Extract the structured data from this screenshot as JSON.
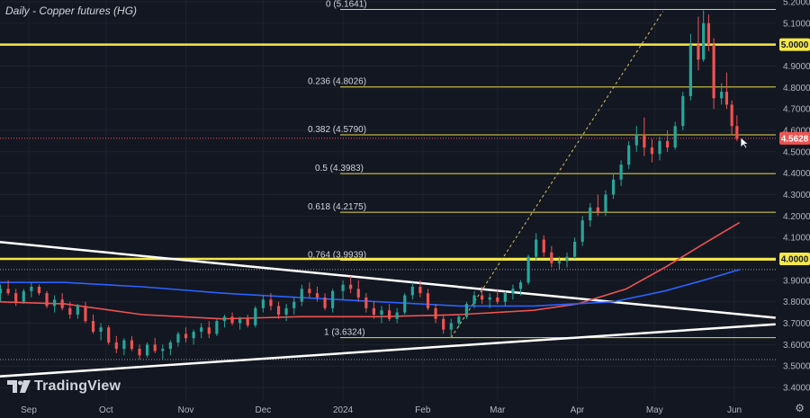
{
  "title": "Daily - Copper futures (HG)",
  "brand": {
    "name": "TradingView"
  },
  "settings_icon": "gear-icon",
  "chart_data": {
    "type": "candlestick",
    "ylim": [
      3.36,
      5.24
    ],
    "y_ticks": [
      5.2,
      5.1,
      5.0,
      4.9,
      4.8,
      4.7,
      4.6,
      4.5,
      4.4,
      4.3,
      4.2,
      4.1,
      4.0,
      3.9,
      3.8,
      3.7,
      3.6,
      3.5,
      3.4
    ],
    "y_tick_labels": [
      "5.2000",
      "5.1000",
      "5.0000",
      "4.9000",
      "4.8000",
      "4.7000",
      "4.6000",
      "4.5000",
      "4.4000",
      "4.3000",
      "4.2000",
      "4.1000",
      "4.0000",
      "3.9000",
      "3.8000",
      "3.7000",
      "3.6000",
      "3.5000",
      "3.4000"
    ],
    "x_labels": [
      {
        "label": "Sep",
        "date": "2023-09-01"
      },
      {
        "label": "Oct",
        "date": "2023-10-01"
      },
      {
        "label": "Nov",
        "date": "2023-11-01"
      },
      {
        "label": "Dec",
        "date": "2023-12-01"
      },
      {
        "label": "2024",
        "date": "2024-01-01"
      },
      {
        "label": "Feb",
        "date": "2024-02-01"
      },
      {
        "label": "Mar",
        "date": "2024-03-01"
      },
      {
        "label": "Apr",
        "date": "2024-04-01"
      },
      {
        "label": "May",
        "date": "2024-05-01"
      },
      {
        "label": "Jun",
        "date": "2024-06-01"
      }
    ],
    "current_price": {
      "value": 4.5628,
      "label": "4.5628"
    },
    "horizontal_levels": [
      {
        "value": 5.0,
        "label": "5.0000"
      },
      {
        "value": 4.0,
        "label": "4.0000"
      }
    ],
    "fibonacci": [
      {
        "label": "0 (5.1641)",
        "value": 5.1641
      },
      {
        "label": "0.236 (4.8026)",
        "value": 4.8026
      },
      {
        "label": "0.382 (4.5790)",
        "value": 4.579
      },
      {
        "label": "0.5 (4.3983)",
        "value": 4.3983
      },
      {
        "label": "0.618 (4.2175)",
        "value": 4.2175
      },
      {
        "label": "0.764 (3.9939)",
        "value": 3.9939
      },
      {
        "label": "1 (3.6324)",
        "value": 3.6324
      }
    ],
    "dotted_levels": [
      3.95,
      3.53
    ],
    "fib_anchor": {
      "start": {
        "date": "2024-02-12",
        "value": 3.6324
      },
      "end": {
        "date": "2024-05-20",
        "value": 5.1641
      }
    },
    "trendlines": [
      {
        "start": {
          "date": "2023-07-25",
          "value": 4.11
        },
        "end": {
          "date": "2024-06-17",
          "value": 3.725
        }
      },
      {
        "start": {
          "date": "2023-07-25",
          "value": 3.43
        },
        "end": {
          "date": "2024-06-17",
          "value": 3.695
        }
      }
    ],
    "moving_averages": [
      {
        "color": "#ef5350",
        "points": [
          {
            "date": "2023-07-25",
            "value": 3.81
          },
          {
            "date": "2023-09-15",
            "value": 3.79
          },
          {
            "date": "2023-10-15",
            "value": 3.74
          },
          {
            "date": "2023-11-15",
            "value": 3.72
          },
          {
            "date": "2023-12-15",
            "value": 3.73
          },
          {
            "date": "2024-01-15",
            "value": 3.73
          },
          {
            "date": "2024-02-15",
            "value": 3.74
          },
          {
            "date": "2024-03-15",
            "value": 3.76
          },
          {
            "date": "2024-04-01",
            "value": 3.79
          },
          {
            "date": "2024-04-20",
            "value": 3.86
          },
          {
            "date": "2024-05-05",
            "value": 3.96
          },
          {
            "date": "2024-05-20",
            "value": 4.07
          },
          {
            "date": "2024-06-03",
            "value": 4.17
          }
        ]
      },
      {
        "color": "#2962ff",
        "points": [
          {
            "date": "2023-07-25",
            "value": 3.89
          },
          {
            "date": "2023-09-15",
            "value": 3.89
          },
          {
            "date": "2023-10-15",
            "value": 3.87
          },
          {
            "date": "2023-11-15",
            "value": 3.84
          },
          {
            "date": "2023-12-15",
            "value": 3.82
          },
          {
            "date": "2024-01-15",
            "value": 3.8
          },
          {
            "date": "2024-02-15",
            "value": 3.78
          },
          {
            "date": "2024-03-15",
            "value": 3.78
          },
          {
            "date": "2024-04-15",
            "value": 3.8
          },
          {
            "date": "2024-05-05",
            "value": 3.85
          },
          {
            "date": "2024-05-20",
            "value": 3.9
          },
          {
            "date": "2024-06-03",
            "value": 3.95
          }
        ]
      }
    ],
    "candles": [
      [
        "2023-08-21",
        3.84,
        3.88,
        3.8,
        3.86
      ],
      [
        "2023-08-24",
        3.86,
        3.9,
        3.83,
        3.84
      ],
      [
        "2023-08-27",
        3.84,
        3.86,
        3.78,
        3.8
      ],
      [
        "2023-08-30",
        3.8,
        3.86,
        3.79,
        3.85
      ],
      [
        "2023-09-02",
        3.85,
        3.89,
        3.82,
        3.87
      ],
      [
        "2023-09-05",
        3.87,
        3.88,
        3.83,
        3.84
      ],
      [
        "2023-09-08",
        3.84,
        3.85,
        3.77,
        3.78
      ],
      [
        "2023-09-11",
        3.78,
        3.83,
        3.75,
        3.81
      ],
      [
        "2023-09-14",
        3.81,
        3.84,
        3.76,
        3.77
      ],
      [
        "2023-09-17",
        3.77,
        3.8,
        3.72,
        3.74
      ],
      [
        "2023-09-20",
        3.74,
        3.79,
        3.72,
        3.78
      ],
      [
        "2023-09-23",
        3.78,
        3.8,
        3.7,
        3.71
      ],
      [
        "2023-09-26",
        3.71,
        3.74,
        3.65,
        3.66
      ],
      [
        "2023-09-29",
        3.66,
        3.7,
        3.62,
        3.68
      ],
      [
        "2023-10-02",
        3.68,
        3.69,
        3.6,
        3.61
      ],
      [
        "2023-10-05",
        3.61,
        3.64,
        3.56,
        3.58
      ],
      [
        "2023-10-08",
        3.58,
        3.63,
        3.55,
        3.62
      ],
      [
        "2023-10-11",
        3.62,
        3.64,
        3.57,
        3.58
      ],
      [
        "2023-10-14",
        3.58,
        3.6,
        3.53,
        3.55
      ],
      [
        "2023-10-17",
        3.55,
        3.61,
        3.54,
        3.6
      ],
      [
        "2023-10-20",
        3.6,
        3.63,
        3.56,
        3.57
      ],
      [
        "2023-10-23",
        3.57,
        3.6,
        3.53,
        3.58
      ],
      [
        "2023-10-26",
        3.58,
        3.62,
        3.55,
        3.61
      ],
      [
        "2023-10-29",
        3.61,
        3.66,
        3.59,
        3.65
      ],
      [
        "2023-11-01",
        3.65,
        3.68,
        3.61,
        3.63
      ],
      [
        "2023-11-04",
        3.63,
        3.67,
        3.6,
        3.66
      ],
      [
        "2023-11-07",
        3.66,
        3.7,
        3.63,
        3.68
      ],
      [
        "2023-11-10",
        3.68,
        3.71,
        3.63,
        3.65
      ],
      [
        "2023-11-13",
        3.65,
        3.72,
        3.64,
        3.71
      ],
      [
        "2023-11-16",
        3.71,
        3.74,
        3.68,
        3.73
      ],
      [
        "2023-11-19",
        3.73,
        3.75,
        3.69,
        3.7
      ],
      [
        "2023-11-22",
        3.7,
        3.73,
        3.67,
        3.72
      ],
      [
        "2023-11-25",
        3.72,
        3.74,
        3.68,
        3.69
      ],
      [
        "2023-11-28",
        3.69,
        3.78,
        3.68,
        3.77
      ],
      [
        "2023-12-01",
        3.77,
        3.83,
        3.75,
        3.81
      ],
      [
        "2023-12-04",
        3.81,
        3.84,
        3.76,
        3.78
      ],
      [
        "2023-12-07",
        3.78,
        3.8,
        3.72,
        3.74
      ],
      [
        "2023-12-10",
        3.74,
        3.79,
        3.71,
        3.77
      ],
      [
        "2023-12-13",
        3.77,
        3.82,
        3.74,
        3.8
      ],
      [
        "2023-12-16",
        3.8,
        3.88,
        3.78,
        3.86
      ],
      [
        "2023-12-19",
        3.86,
        3.89,
        3.82,
        3.84
      ],
      [
        "2023-12-22",
        3.84,
        3.87,
        3.8,
        3.82
      ],
      [
        "2023-12-25",
        3.82,
        3.84,
        3.76,
        3.77
      ],
      [
        "2023-12-28",
        3.77,
        3.86,
        3.75,
        3.85
      ],
      [
        "2024-01-01",
        3.85,
        3.9,
        3.81,
        3.88
      ],
      [
        "2024-01-04",
        3.88,
        3.92,
        3.84,
        3.86
      ],
      [
        "2024-01-07",
        3.86,
        3.9,
        3.8,
        3.82
      ],
      [
        "2024-01-10",
        3.82,
        3.84,
        3.75,
        3.77
      ],
      [
        "2024-01-13",
        3.77,
        3.8,
        3.72,
        3.74
      ],
      [
        "2024-01-16",
        3.74,
        3.78,
        3.7,
        3.76
      ],
      [
        "2024-01-19",
        3.76,
        3.79,
        3.71,
        3.72
      ],
      [
        "2024-01-22",
        3.72,
        3.77,
        3.7,
        3.75
      ],
      [
        "2024-01-25",
        3.75,
        3.84,
        3.74,
        3.83
      ],
      [
        "2024-01-28",
        3.83,
        3.89,
        3.81,
        3.87
      ],
      [
        "2024-01-31",
        3.87,
        3.9,
        3.82,
        3.84
      ],
      [
        "2024-02-03",
        3.84,
        3.86,
        3.76,
        3.77
      ],
      [
        "2024-02-06",
        3.77,
        3.79,
        3.7,
        3.72
      ],
      [
        "2024-02-09",
        3.72,
        3.74,
        3.65,
        3.67
      ],
      [
        "2024-02-12",
        3.67,
        3.72,
        3.63,
        3.7
      ],
      [
        "2024-02-15",
        3.7,
        3.74,
        3.68,
        3.73
      ],
      [
        "2024-02-18",
        3.73,
        3.8,
        3.72,
        3.79
      ],
      [
        "2024-02-21",
        3.79,
        3.85,
        3.77,
        3.83
      ],
      [
        "2024-02-24",
        3.83,
        3.87,
        3.79,
        3.81
      ],
      [
        "2024-02-27",
        3.81,
        3.84,
        3.77,
        3.82
      ],
      [
        "2024-03-01",
        3.82,
        3.86,
        3.79,
        3.8
      ],
      [
        "2024-03-04",
        3.8,
        3.85,
        3.78,
        3.84
      ],
      [
        "2024-03-07",
        3.84,
        3.88,
        3.81,
        3.86
      ],
      [
        "2024-03-10",
        3.86,
        3.9,
        3.83,
        3.89
      ],
      [
        "2024-03-13",
        3.89,
        4.02,
        3.88,
        4.01
      ],
      [
        "2024-03-16",
        4.01,
        4.12,
        3.99,
        4.09
      ],
      [
        "2024-03-19",
        4.09,
        4.11,
        4.01,
        4.03
      ],
      [
        "2024-03-22",
        4.03,
        4.06,
        3.96,
        3.98
      ],
      [
        "2024-03-25",
        3.98,
        4.01,
        3.95,
        3.99
      ],
      [
        "2024-03-28",
        3.99,
        4.03,
        3.96,
        4.01
      ],
      [
        "2024-03-31",
        4.01,
        4.1,
        4.0,
        4.08
      ],
      [
        "2024-04-03",
        4.08,
        4.2,
        4.06,
        4.18
      ],
      [
        "2024-04-06",
        4.18,
        4.26,
        4.15,
        4.24
      ],
      [
        "2024-04-09",
        4.24,
        4.3,
        4.2,
        4.22
      ],
      [
        "2024-04-12",
        4.22,
        4.32,
        4.2,
        4.3
      ],
      [
        "2024-04-15",
        4.3,
        4.4,
        4.28,
        4.37
      ],
      [
        "2024-04-18",
        4.37,
        4.46,
        4.34,
        4.44
      ],
      [
        "2024-04-21",
        4.44,
        4.55,
        4.42,
        4.53
      ],
      [
        "2024-04-24",
        4.53,
        4.62,
        4.5,
        4.58
      ],
      [
        "2024-04-27",
        4.58,
        4.66,
        4.48,
        4.52
      ],
      [
        "2024-04-30",
        4.52,
        4.56,
        4.45,
        4.49
      ],
      [
        "2024-05-03",
        4.49,
        4.57,
        4.46,
        4.55
      ],
      [
        "2024-05-06",
        4.55,
        4.6,
        4.5,
        4.52
      ],
      [
        "2024-05-09",
        4.52,
        4.64,
        4.51,
        4.62
      ],
      [
        "2024-05-12",
        4.62,
        4.78,
        4.6,
        4.76
      ],
      [
        "2024-05-15",
        4.76,
        5.05,
        4.74,
        5.0
      ],
      [
        "2024-05-18",
        5.0,
        5.13,
        4.88,
        4.93
      ],
      [
        "2024-05-20",
        4.93,
        5.16,
        4.92,
        5.1
      ],
      [
        "2024-05-22",
        5.1,
        5.14,
        4.97,
        5.0
      ],
      [
        "2024-05-24",
        5.0,
        5.03,
        4.7,
        4.75
      ],
      [
        "2024-05-27",
        4.75,
        4.82,
        4.72,
        4.78
      ],
      [
        "2024-05-29",
        4.78,
        4.87,
        4.7,
        4.72
      ],
      [
        "2024-05-31",
        4.72,
        4.74,
        4.58,
        4.62
      ],
      [
        "2024-06-02",
        4.62,
        4.67,
        4.55,
        4.56
      ]
    ]
  }
}
